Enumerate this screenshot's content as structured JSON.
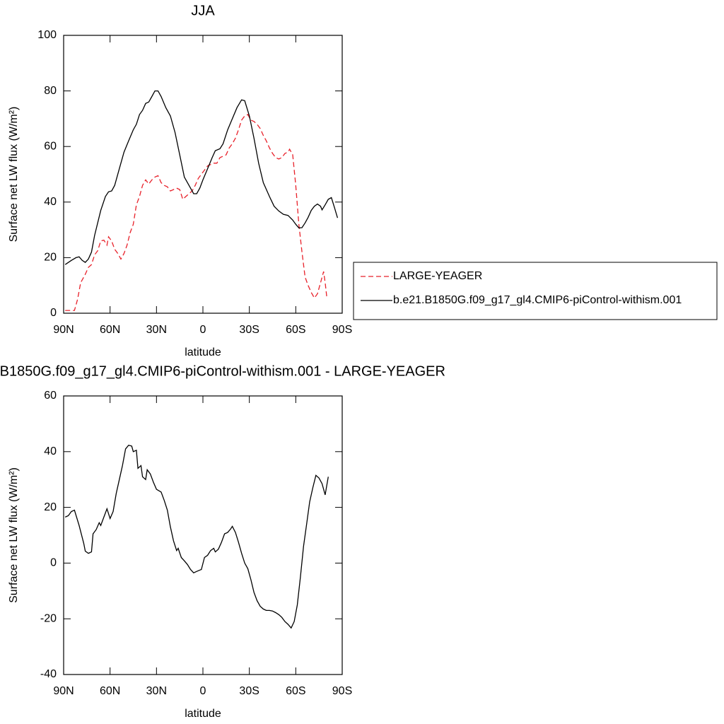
{
  "chart_data": [
    {
      "type": "line",
      "title": "JJA",
      "xlabel": "latitude",
      "ylabel": "Surface net LW flux (W/m²)",
      "xlim": [
        90,
        -90
      ],
      "ylim": [
        0,
        100
      ],
      "xticks": [
        {
          "value": 90,
          "label": "90N"
        },
        {
          "value": 60,
          "label": "60N"
        },
        {
          "value": 30,
          "label": "30N"
        },
        0,
        {
          "value": -30,
          "label": "30S"
        },
        {
          "value": -60,
          "label": "60S"
        },
        {
          "value": -90,
          "label": "90S"
        }
      ],
      "yticks": [
        0,
        20,
        40,
        60,
        80,
        100
      ],
      "legend": "outside-right",
      "series": [
        {
          "name": "LARGE-YEAGER",
          "color": "#e8212a",
          "dash": "dashed",
          "x": [
            89,
            85,
            83,
            81,
            79,
            76,
            74,
            72,
            70,
            68,
            66,
            64,
            62,
            61,
            59,
            57,
            55,
            53,
            51,
            49,
            47,
            45,
            43,
            41,
            39,
            37,
            35,
            33,
            31,
            29,
            27,
            25,
            23,
            21,
            19,
            17,
            15,
            13,
            11,
            9,
            7,
            5,
            3,
            1,
            -1,
            -3,
            -5,
            -7,
            -9,
            -11,
            -13,
            -15,
            -17,
            -19,
            -21,
            -23,
            -25,
            -27,
            -29,
            -31,
            -33,
            -35,
            -37,
            -39,
            -41,
            -43,
            -45,
            -47,
            -49,
            -51,
            -53,
            -55,
            -56,
            -58,
            -60,
            -62,
            -64,
            -66,
            -68,
            -70,
            -72,
            -74,
            -76,
            -78,
            -79,
            -80
          ],
          "values": [
            1,
            1,
            1,
            5,
            11,
            14,
            16.5,
            17.5,
            21,
            22.5,
            26,
            26.3,
            24.5,
            27.5,
            26,
            23,
            21.5,
            19.5,
            21.5,
            24.5,
            29,
            32,
            39,
            42,
            46,
            48,
            46.5,
            48,
            49,
            49.5,
            47,
            46,
            45.5,
            44,
            44.5,
            45,
            44.5,
            41,
            42,
            43,
            44,
            46,
            48.5,
            50,
            51.5,
            53,
            53.5,
            54,
            54,
            56,
            56.5,
            57,
            59.5,
            61,
            63,
            66,
            69.5,
            71,
            71.5,
            69.5,
            69,
            68,
            66.5,
            64,
            62,
            59.5,
            57.5,
            56,
            55.5,
            56,
            57.5,
            58,
            59,
            57,
            46,
            32,
            22,
            13,
            10,
            7.5,
            5.5,
            7,
            11,
            15,
            11,
            6
          ]
        },
        {
          "name": "b.e21.B1850G.f09_g17_gl4.CMIP6-piControl-withism.001",
          "color": "#000000",
          "dash": "solid",
          "x": [
            89,
            85,
            82,
            80,
            78,
            76,
            74,
            72,
            70,
            66,
            63,
            61,
            59,
            57,
            54,
            51,
            48,
            45,
            43,
            41,
            39,
            37,
            35,
            33,
            31,
            29,
            27,
            24,
            21,
            18,
            15,
            12,
            9,
            6,
            4,
            2,
            0,
            -3,
            -6,
            -8,
            -11,
            -13,
            -16,
            -19,
            -22,
            -25,
            -27,
            -30,
            -33,
            -36,
            -39,
            -43,
            -46,
            -49,
            -52,
            -55,
            -58,
            -60,
            -62,
            -64,
            -66,
            -68,
            -70,
            -72,
            -74,
            -76,
            -77,
            -79,
            -81,
            -83,
            -85,
            -87
          ],
          "values": [
            17.5,
            19,
            20,
            20.3,
            19,
            18.3,
            19.5,
            22,
            28,
            37,
            42,
            43.7,
            44,
            46,
            52,
            58,
            62,
            66,
            68,
            71.5,
            73,
            75.5,
            76,
            78,
            80,
            80,
            78,
            74,
            71,
            65,
            57,
            49,
            46,
            43,
            43,
            45,
            48,
            52,
            56,
            58.5,
            59.2,
            61,
            66,
            70,
            74,
            76.8,
            76.5,
            71,
            63,
            54,
            47,
            42,
            38.5,
            36.8,
            35.6,
            35.2,
            33.5,
            32,
            30.7,
            30.8,
            32.5,
            34.5,
            37,
            38.5,
            39.3,
            38.5,
            37.2,
            39,
            41,
            41.6,
            38,
            34.3
          ]
        }
      ]
    },
    {
      "type": "line",
      "title": "b.e21.B1850G.f09_g17_gl4.CMIP6-piControl-withism.001 - LARGE-YEAGER",
      "xlabel": "latitude",
      "ylabel": "Surface net LW flux (W/m²)",
      "xlim": [
        90,
        -90
      ],
      "ylim": [
        -40,
        60
      ],
      "xticks": [
        {
          "value": 90,
          "label": "90N"
        },
        {
          "value": 60,
          "label": "60N"
        },
        {
          "value": 30,
          "label": "30N"
        },
        0,
        {
          "value": -30,
          "label": "30S"
        },
        {
          "value": -60,
          "label": "60S"
        },
        {
          "value": -90,
          "label": "90S"
        }
      ],
      "yticks": [
        -40,
        -20,
        0,
        20,
        40,
        60
      ],
      "series": [
        {
          "color": "#000000",
          "dash": "solid",
          "x": [
            89,
            87,
            85,
            83,
            80,
            77,
            76,
            74,
            72,
            71,
            69,
            67,
            66,
            64,
            62,
            60,
            58,
            56,
            54,
            52,
            50,
            48,
            46,
            45,
            43,
            42,
            40,
            39,
            37,
            36,
            34,
            32,
            30,
            27,
            25,
            23,
            21,
            19,
            17,
            16,
            14,
            12,
            10,
            8,
            6,
            4,
            2,
            1,
            -1,
            -3,
            -5,
            -7,
            -8,
            -10,
            -12,
            -14,
            -16,
            -18,
            -19,
            -21,
            -23,
            -25,
            -27,
            -29,
            -31,
            -33,
            -35,
            -37,
            -39,
            -41,
            -43,
            -45,
            -47,
            -49,
            -51,
            -53,
            -55,
            -57,
            -59,
            -61,
            -63,
            -65,
            -67,
            -69,
            -71,
            -73,
            -75,
            -77,
            -79,
            -81
          ],
          "values": [
            16.5,
            17,
            18.5,
            19,
            13.5,
            7,
            4.3,
            3.5,
            4,
            10.5,
            12,
            14.5,
            13.5,
            16.5,
            19.5,
            16,
            18.5,
            25,
            30,
            35,
            41,
            42.3,
            42,
            40,
            40.5,
            34,
            35,
            31,
            30,
            33.5,
            32,
            29,
            26.5,
            25.5,
            22.5,
            19,
            13,
            8,
            4.5,
            5.3,
            2,
            0.8,
            -0.5,
            -2.3,
            -3.5,
            -3,
            -2.5,
            -2.3,
            2,
            2.8,
            4.5,
            5.3,
            4,
            5,
            7.5,
            10.5,
            11,
            12.3,
            13.2,
            11,
            7.5,
            3.5,
            0,
            -2,
            -6,
            -10.5,
            -13.5,
            -15.5,
            -16.5,
            -17,
            -17,
            -17.2,
            -17.8,
            -18.5,
            -19.5,
            -21,
            -22,
            -23.3,
            -21,
            -15,
            -5,
            6,
            14,
            22,
            27,
            31.5,
            30.5,
            28.5,
            24.5,
            31
          ]
        }
      ]
    }
  ]
}
